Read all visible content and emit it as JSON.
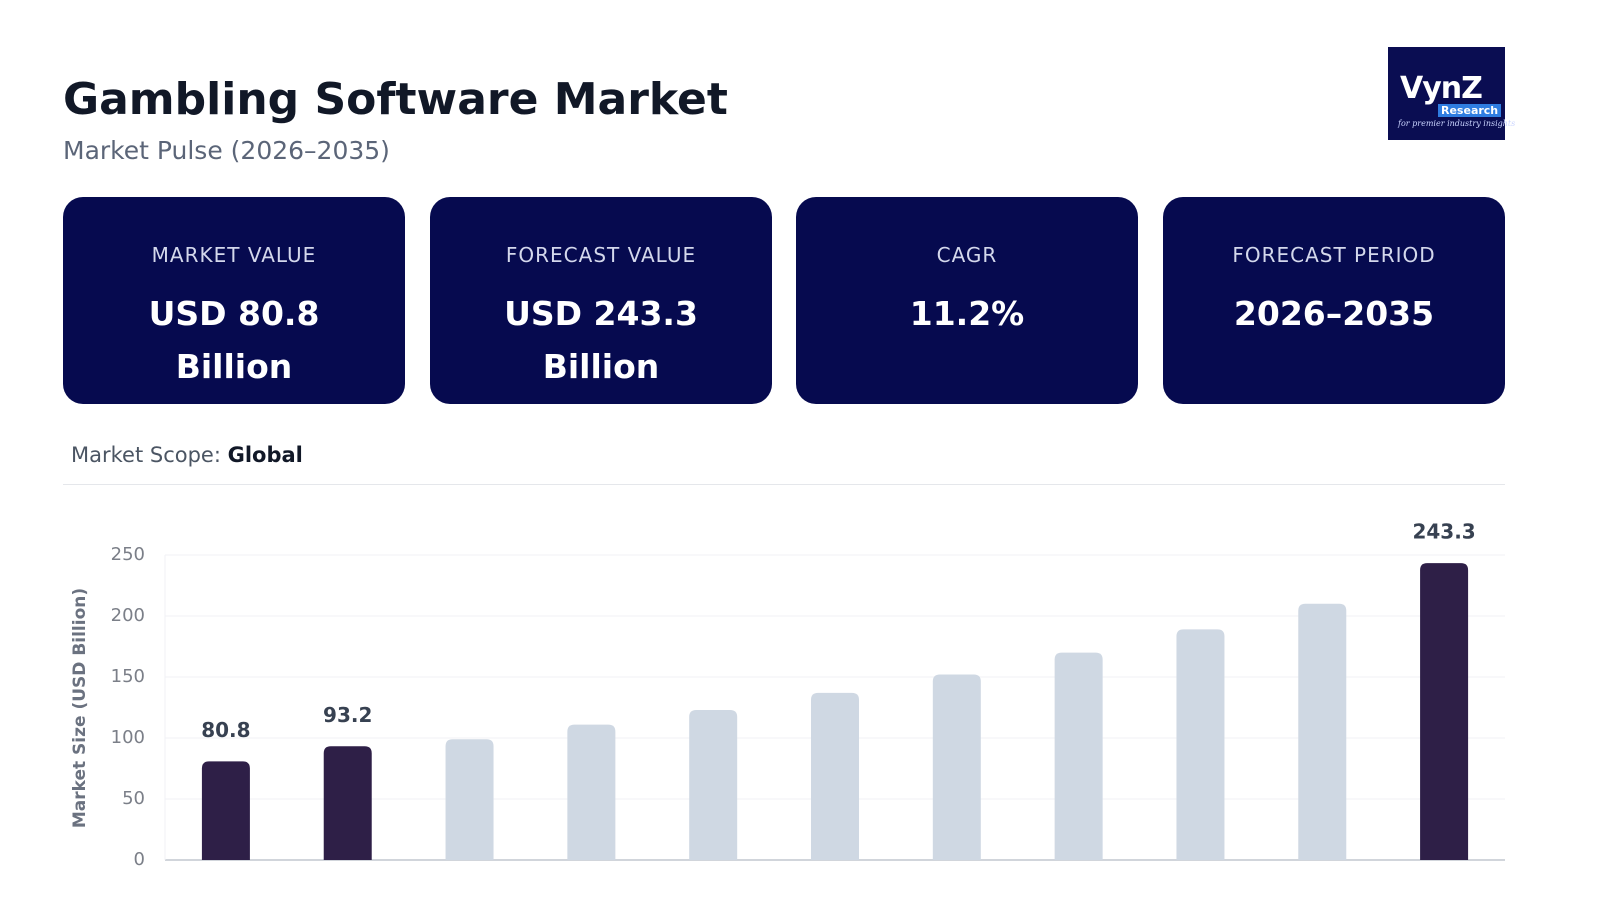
{
  "header": {
    "title": "Gambling Software Market",
    "subtitle": "Market Pulse (2026–2035)"
  },
  "logo": {
    "brand": "VynZ",
    "sub": "Research",
    "tagline": "for premier industry insights"
  },
  "cards": [
    {
      "label": "MARKET VALUE",
      "value": "USD 80.8 Billion"
    },
    {
      "label": "FORECAST VALUE",
      "value": "USD 243.3 Billion"
    },
    {
      "label": "CAGR",
      "value": "11.2%"
    },
    {
      "label": "FORECAST PERIOD",
      "value": "2026–2035"
    }
  ],
  "scope": {
    "label": "Market Scope:",
    "value": "Global"
  },
  "chart_data": {
    "type": "bar",
    "y_label": "Market Size (USD Billion)",
    "categories": [
      null,
      null,
      null,
      null,
      null,
      null,
      null,
      null,
      null,
      null,
      null
    ],
    "values": [
      80.8,
      93.2,
      99,
      111,
      123,
      137,
      152,
      170,
      189,
      210,
      243.3
    ],
    "value_labels": [
      "80.8",
      "93.2",
      null,
      null,
      null,
      null,
      null,
      null,
      null,
      null,
      "243.3"
    ],
    "colors": [
      "#2e1f47",
      "#2e1f47",
      "#cfd8e3",
      "#cfd8e3",
      "#cfd8e3",
      "#cfd8e3",
      "#cfd8e3",
      "#cfd8e3",
      "#cfd8e3",
      "#cfd8e3",
      "#2e1f47"
    ],
    "ylim": [
      0,
      250
    ],
    "yticks": [
      0,
      50,
      100,
      150,
      200,
      250
    ],
    "grid": true
  }
}
